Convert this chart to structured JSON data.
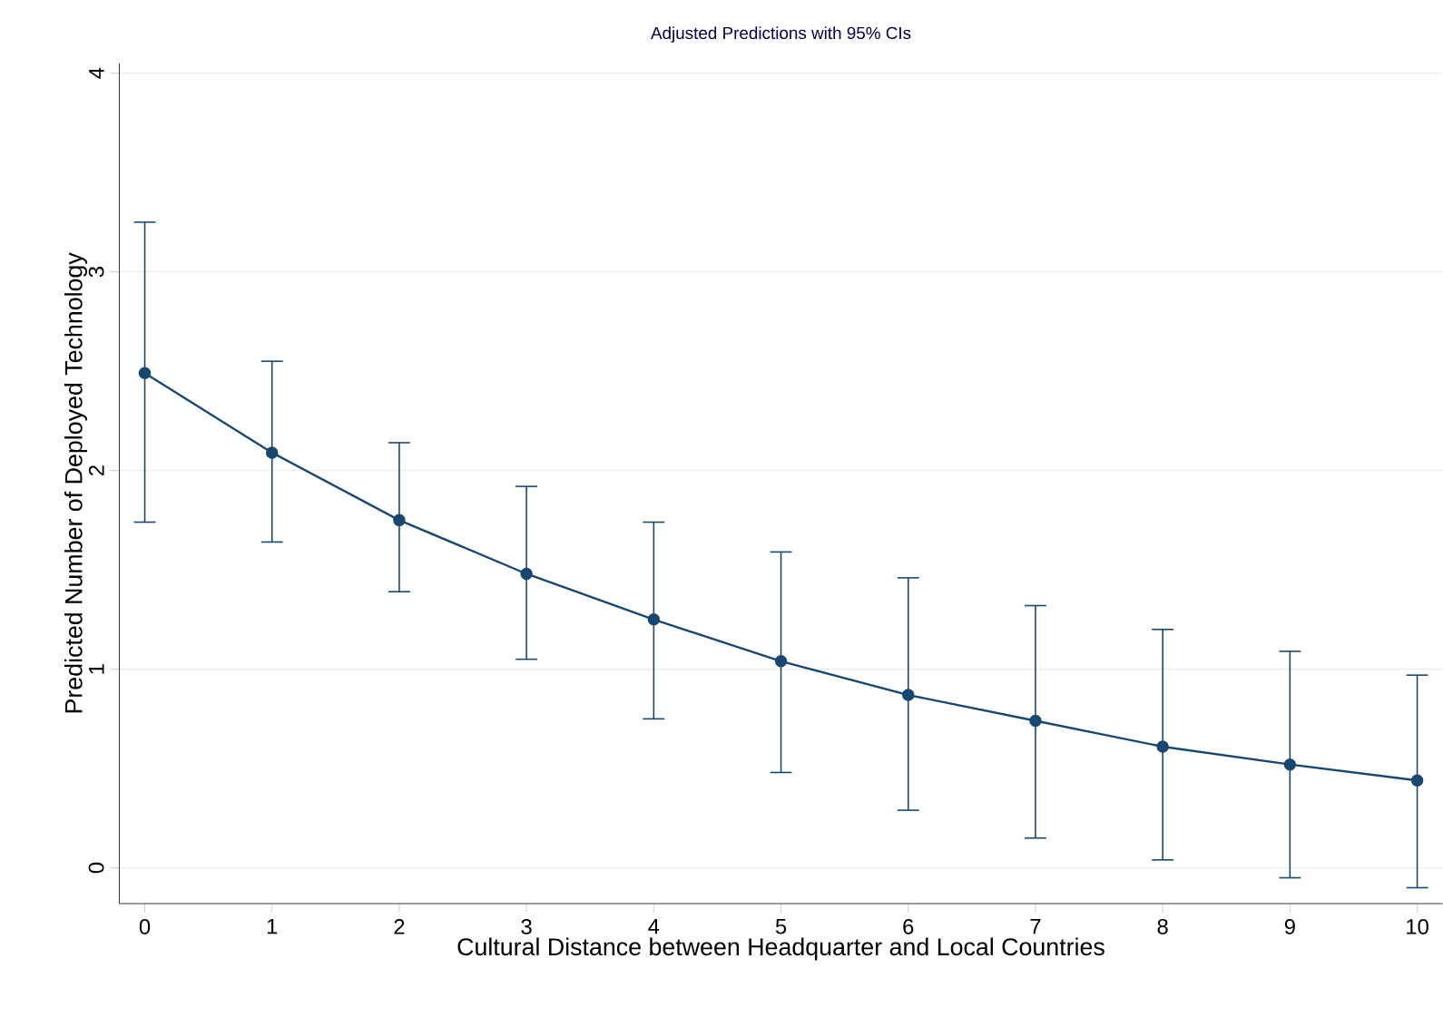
{
  "chart_data": {
    "type": "line",
    "title": "Adjusted Predictions with 95% CIs",
    "xlabel": "Cultural Distance between Headquarter and Local Countries",
    "ylabel": "Predicted Number of Deployed Technology",
    "x": [
      0,
      1,
      2,
      3,
      4,
      5,
      6,
      7,
      8,
      9,
      10
    ],
    "series": [
      {
        "color": "#1a476f",
        "values": [
          2.49,
          2.09,
          1.75,
          1.48,
          1.25,
          1.04,
          0.87,
          0.74,
          0.61,
          0.52,
          0.44
        ],
        "errors": [
          [
            1.74,
            3.25
          ],
          [
            1.64,
            2.55
          ],
          [
            1.39,
            2.14
          ],
          [
            1.05,
            1.92
          ],
          [
            0.75,
            1.74
          ],
          [
            0.48,
            1.59
          ],
          [
            0.29,
            1.46
          ],
          [
            0.15,
            1.32
          ],
          [
            0.04,
            1.2
          ],
          [
            -0.05,
            1.09
          ],
          [
            -0.1,
            0.97
          ]
        ]
      }
    ],
    "xlim": [
      -0.2,
      10.2
    ],
    "ylim": [
      -0.18,
      4.05
    ],
    "xticks": [
      0,
      1,
      2,
      3,
      4,
      5,
      6,
      7,
      8,
      9,
      10
    ],
    "yticks": [
      0,
      1,
      2,
      3,
      4
    ],
    "grid": "y",
    "marker": "circle",
    "line_style": "solid"
  }
}
